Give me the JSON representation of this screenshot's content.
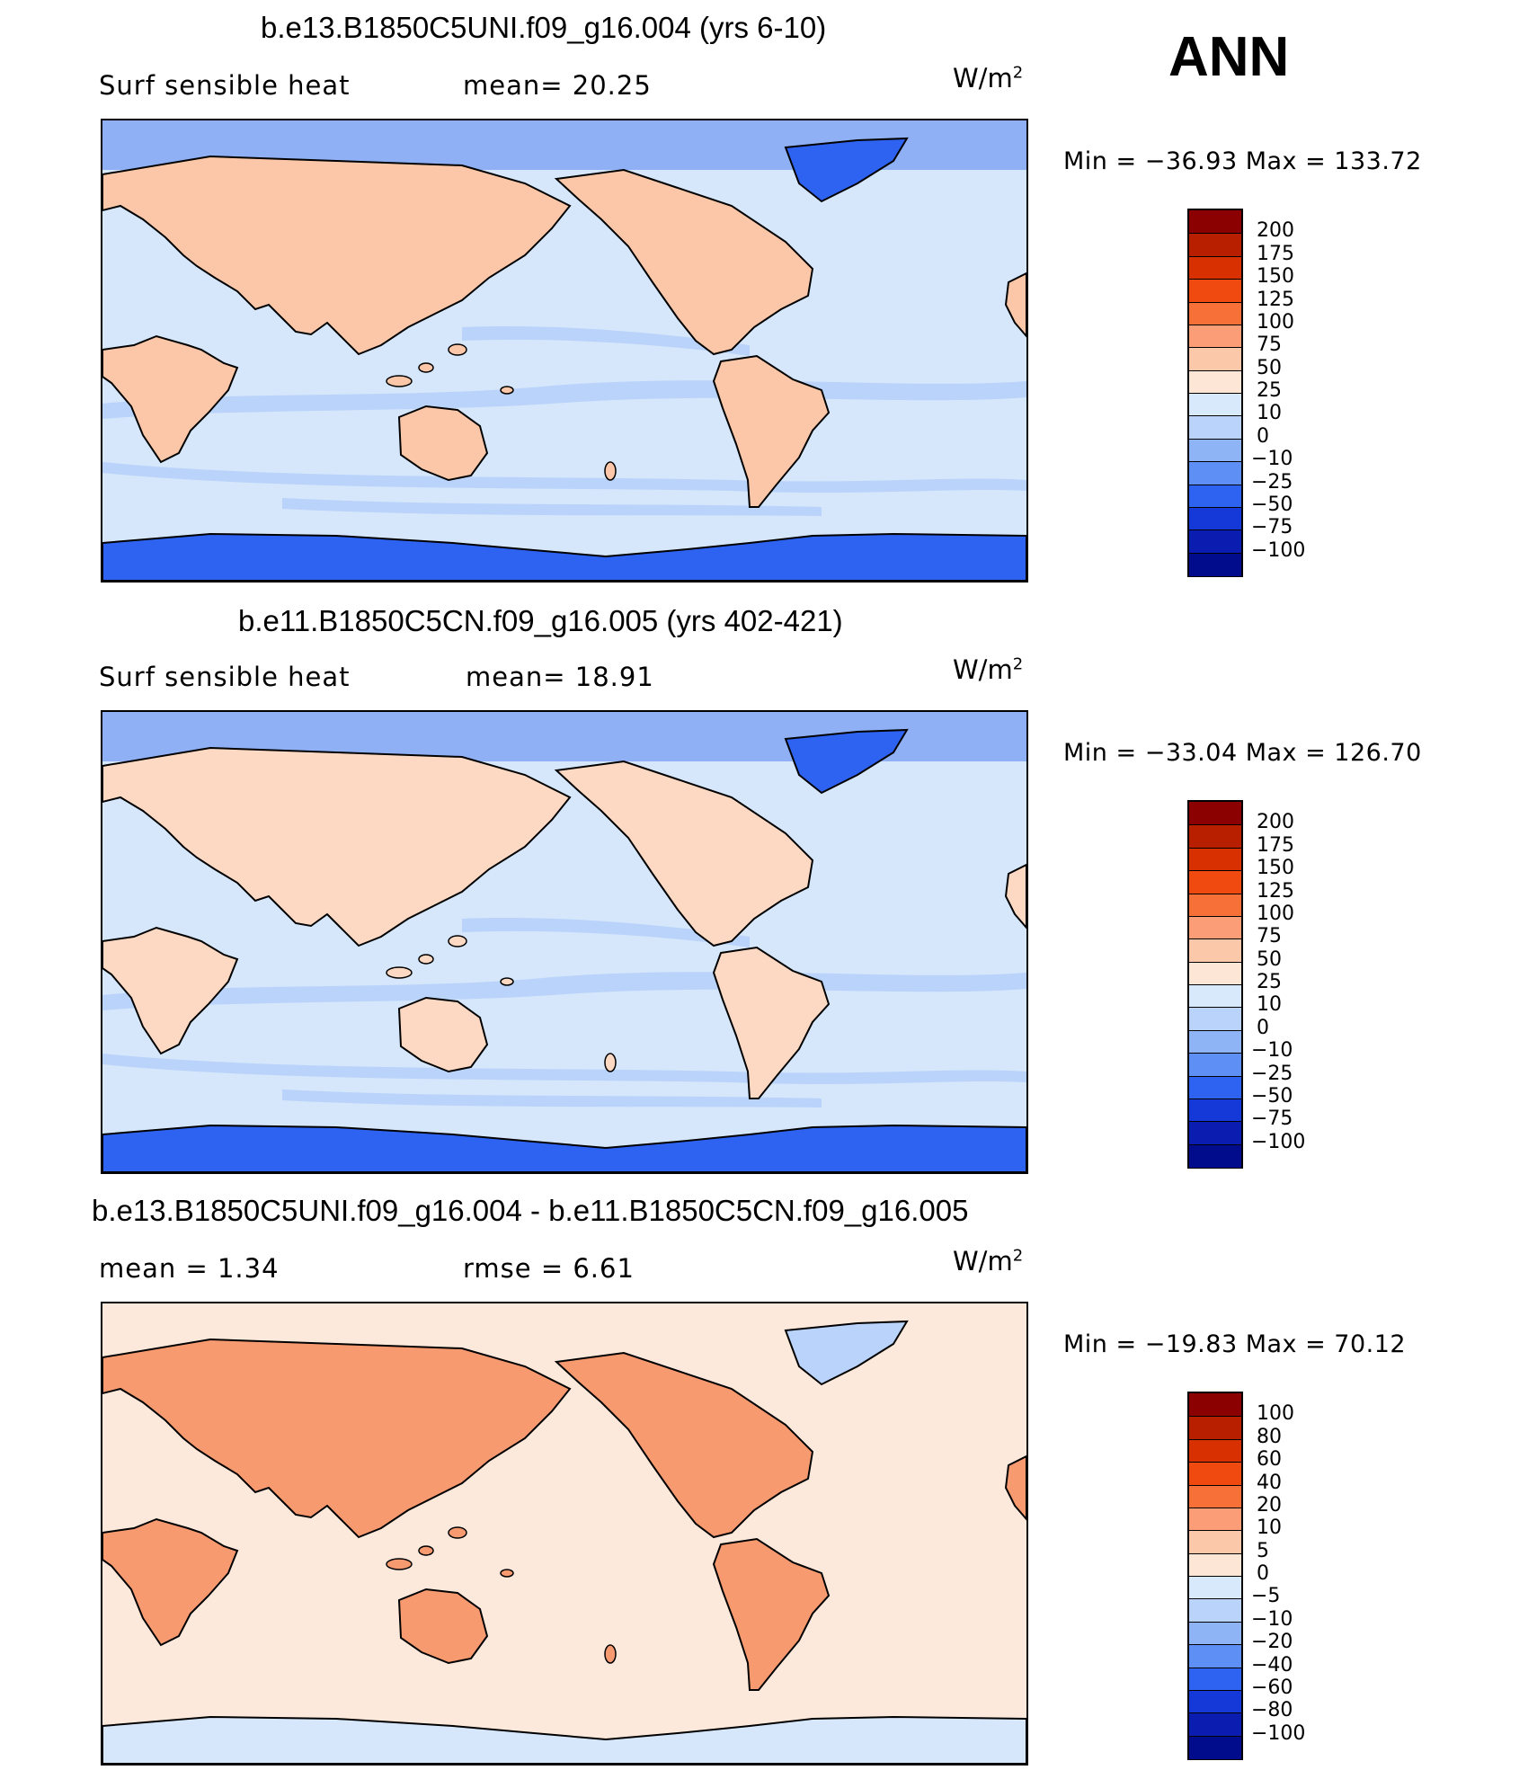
{
  "season": "ANN",
  "panels": [
    {
      "title": "b.e13.B1850C5UNI.f09_g16.004 (yrs 6-10)",
      "left_label": "Surf  sensible  heat",
      "mid_label": "mean=   20.25",
      "units": "W/m",
      "units_exp": "2",
      "minmax": "Min  =  −36.93  Max  =  133.72",
      "colorbar_labels": [
        "200",
        "175",
        "150",
        "125",
        "100",
        "75",
        "50",
        "25",
        "10",
        "0",
        "−10",
        "−25",
        "−50",
        "−75",
        "−100"
      ],
      "colorbar_colors": [
        "#8b0000",
        "#b81e00",
        "#d83000",
        "#f04a10",
        "#f77038",
        "#fb9e78",
        "#fcc8aa",
        "#fde6d6",
        "#d8e9fb",
        "#b9d3fa",
        "#8fb4f6",
        "#5d8ff5",
        "#2e63f2",
        "#1538d8",
        "#0a1db0",
        "#000c8c"
      ]
    },
    {
      "title": "b.e11.B1850C5CN.f09_g16.005 (yrs 402-421)",
      "left_label": "Surf  sensible  heat",
      "mid_label": "mean=   18.91",
      "units": "W/m",
      "units_exp": "2",
      "minmax": "Min  =  −33.04  Max  =  126.70",
      "colorbar_labels": [
        "200",
        "175",
        "150",
        "125",
        "100",
        "75",
        "50",
        "25",
        "10",
        "0",
        "−10",
        "−25",
        "−50",
        "−75",
        "−100"
      ],
      "colorbar_colors": [
        "#8b0000",
        "#b81e00",
        "#d83000",
        "#f04a10",
        "#f77038",
        "#fb9e78",
        "#fcc8aa",
        "#fde6d6",
        "#d8e9fb",
        "#b9d3fa",
        "#8fb4f6",
        "#5d8ff5",
        "#2e63f2",
        "#1538d8",
        "#0a1db0",
        "#000c8c"
      ]
    },
    {
      "title": "b.e13.B1850C5UNI.f09_g16.004 - b.e11.B1850C5CN.f09_g16.005",
      "left_label": "mean  =     1.34",
      "mid_label": "rmse  =     6.61",
      "units": "W/m",
      "units_exp": "2",
      "minmax": "Min  =  −19.83  Max  =    70.12",
      "colorbar_labels": [
        "100",
        "80",
        "60",
        "40",
        "20",
        "10",
        "5",
        "0",
        "−5",
        "−10",
        "−20",
        "−40",
        "−60",
        "−80",
        "−100"
      ],
      "colorbar_colors": [
        "#8b0000",
        "#b81e00",
        "#d83000",
        "#f04a10",
        "#f77038",
        "#fb9e78",
        "#fcc8aa",
        "#fde6d6",
        "#d8e9fb",
        "#b9d3fa",
        "#8fb4f6",
        "#5d8ff5",
        "#2e63f2",
        "#1538d8",
        "#0a1db0",
        "#000c8c"
      ]
    }
  ],
  "palette": {
    "ocean_base": [
      "#d6e6fb",
      "#d6e6fb",
      "#fde9dc"
    ],
    "land": [
      "#fbc7a8",
      "#fdd9c4",
      "#f79a70"
    ],
    "arctic": [
      "#8fb0f5",
      "#8fb0f5",
      "#fde9dc"
    ],
    "antarctic": [
      "#2e63f2",
      "#2e63f2",
      "#d6e6fb"
    ],
    "greenland": [
      "#2e63f2",
      "#2e63f2",
      "#b9d3fa"
    ],
    "band": [
      "#b9d3fa",
      "#b9d3fa",
      "#fde9dc"
    ]
  }
}
